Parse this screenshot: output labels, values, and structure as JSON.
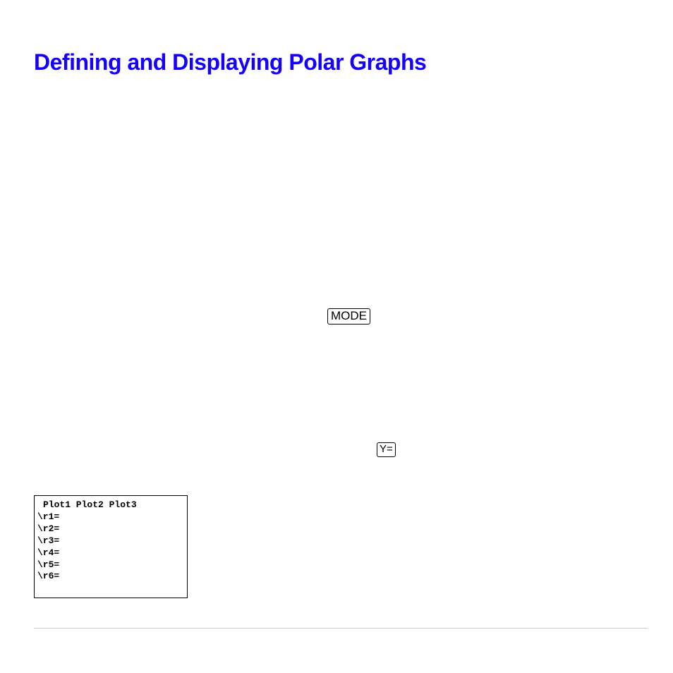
{
  "title": "Defining and Displaying Polar Graphs",
  "title_color": "#1500ff",
  "title_fontsize": 32,
  "title_fontweight": 900,
  "keys": {
    "mode": "MODE",
    "yeq": "Y="
  },
  "key_border_color": "#000000",
  "key_background": "#ffffff",
  "yeditor": {
    "plot_header": "Plot1 Plot2 Plot3",
    "lines": [
      "\\r1=",
      "\\r2=",
      "\\r3=",
      "\\r4=",
      "\\r5=",
      "\\r6="
    ],
    "border_color": "#000000",
    "background": "#ffffff",
    "font_family": "Courier New",
    "font_size": 13
  },
  "divider_color": "#cccccc",
  "page_background": "#ffffff"
}
